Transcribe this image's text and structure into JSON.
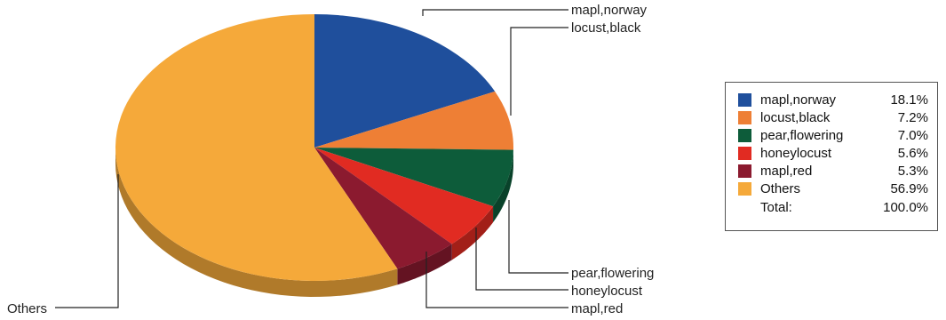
{
  "chart_data": {
    "type": "pie",
    "title": "",
    "slices": [
      {
        "label": "mapl,norway",
        "value": 18.1,
        "legend_value": "18.1%",
        "color": "#1f4f9c"
      },
      {
        "label": "locust,black",
        "value": 7.2,
        "legend_value": "7.2%",
        "color": "#ee7f35"
      },
      {
        "label": "pear,flowering",
        "value": 7.0,
        "legend_value": "7.0%",
        "color": "#0d5c3a"
      },
      {
        "label": "honeylocust",
        "value": 5.6,
        "legend_value": "5.6%",
        "color": "#e12b22"
      },
      {
        "label": "mapl,red",
        "value": 5.3,
        "legend_value": "5.3%",
        "color": "#8b1a2f"
      },
      {
        "label": "Others",
        "value": 56.9,
        "legend_value": "56.9%",
        "color": "#f5a93a"
      }
    ],
    "legend_position": "right",
    "total": {
      "label": "Total:",
      "value": "100.0%"
    }
  }
}
